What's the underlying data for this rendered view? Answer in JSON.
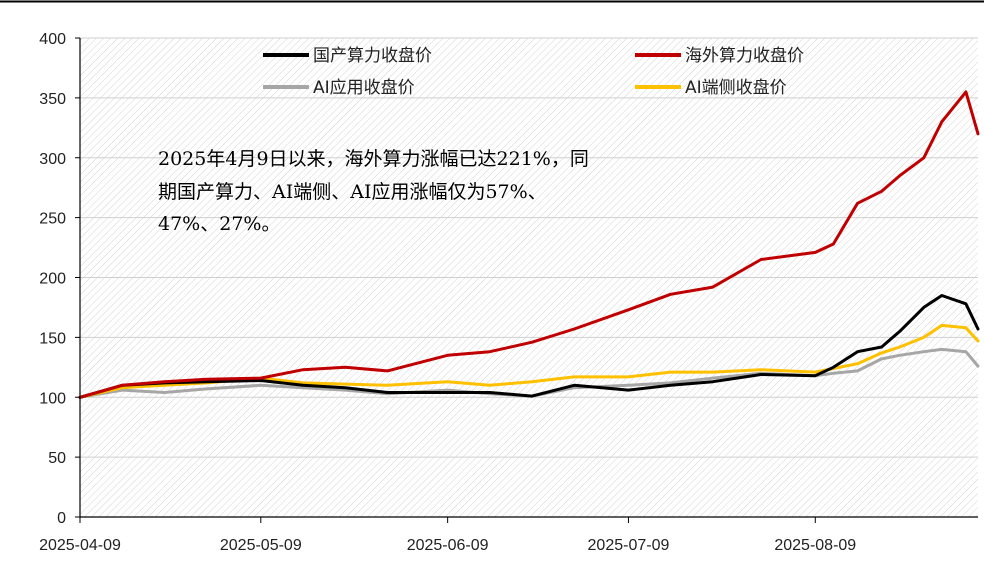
{
  "chart_data": {
    "type": "line",
    "x": [
      "2025-04-09",
      "2025-04-16",
      "2025-04-23",
      "2025-04-30",
      "2025-05-09",
      "2025-05-16",
      "2025-05-23",
      "2025-05-30",
      "2025-06-09",
      "2025-06-16",
      "2025-06-23",
      "2025-06-30",
      "2025-07-09",
      "2025-07-16",
      "2025-07-23",
      "2025-07-31",
      "2025-08-09",
      "2025-08-12",
      "2025-08-16",
      "2025-08-20",
      "2025-08-23",
      "2025-08-27",
      "2025-08-30",
      "2025-09-03",
      "2025-09-05"
    ],
    "series": [
      {
        "name": "国产算力收盘价",
        "color": "#000000",
        "values": [
          100,
          110,
          112,
          113,
          114,
          110,
          108,
          104,
          104,
          104,
          101,
          110,
          106,
          110,
          113,
          119,
          118,
          125,
          138,
          142,
          155,
          175,
          185,
          178,
          157
        ]
      },
      {
        "name": "海外算力收盘价",
        "color": "#c00000",
        "values": [
          100,
          110,
          113,
          115,
          116,
          123,
          125,
          122,
          135,
          138,
          146,
          157,
          173,
          186,
          192,
          215,
          221,
          228,
          262,
          272,
          285,
          300,
          330,
          355,
          320
        ]
      },
      {
        "name": "AI应用收盘价",
        "color": "#a6a6a6",
        "values": [
          100,
          106,
          104,
          107,
          110,
          108,
          106,
          103,
          106,
          103,
          101,
          108,
          110,
          112,
          116,
          120,
          118,
          120,
          122,
          132,
          135,
          138,
          140,
          138,
          126
        ]
      },
      {
        "name": "AI端侧收盘价",
        "color": "#ffc000",
        "values": [
          100,
          108,
          110,
          112,
          116,
          112,
          111,
          110,
          113,
          110,
          113,
          117,
          117,
          121,
          121,
          123,
          121,
          124,
          128,
          137,
          142,
          150,
          160,
          158,
          147
        ]
      }
    ],
    "ylim": [
      0,
      400
    ],
    "yticks": [
      "0",
      "50",
      "100",
      "150",
      "200",
      "250",
      "300",
      "350",
      "400"
    ],
    "xtick_labels": [
      "2025-04-09",
      "2025-05-09",
      "2025-06-09",
      "2025-07-09",
      "2025-08-09"
    ],
    "grid": "diagonal-hatch",
    "legend_position": "top"
  },
  "annotation": {
    "line1": "2025年4月9日以来，海外算力涨幅已达221%，同",
    "line2": "期国产算力、AI端侧、AI应用涨幅仅为57%、",
    "line3": "47%、27%。"
  }
}
